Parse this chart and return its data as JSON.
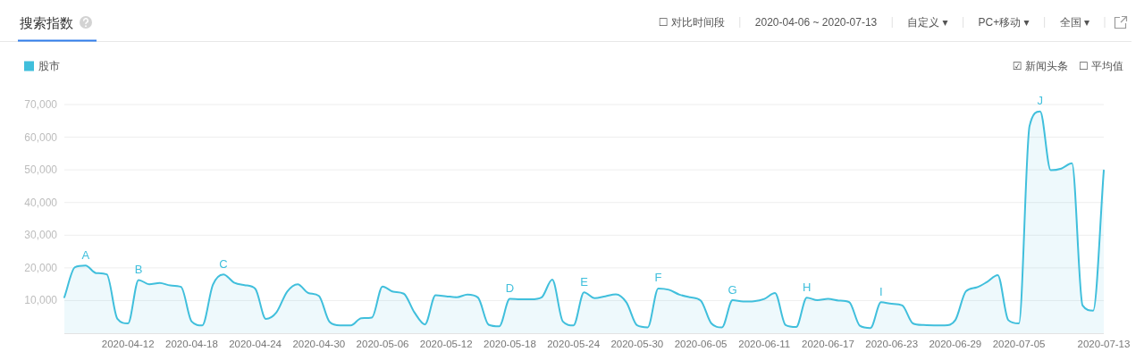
{
  "chart_data": {
    "type": "area",
    "title": "搜索指数",
    "annotations": [
      "☐ 对比时间段",
      "2020-04-06 ~ 2020-07-13",
      "自定义 ▾",
      "PC+移动 ▾",
      "全国 ▾",
      "☑ 新闻头条",
      "☐ 平均值",
      {
        "text": "A",
        "x": "2020-04-08",
        "y": 20700
      },
      {
        "text": "B",
        "x": "2020-04-13",
        "y": 16300
      },
      {
        "text": "C",
        "x": "2020-04-21",
        "y": 18000
      },
      {
        "text": "D",
        "x": "2020-05-18",
        "y": 10500
      },
      {
        "text": "E",
        "x": "2020-05-25",
        "y": 12500
      },
      {
        "text": "F",
        "x": "2020-06-01",
        "y": 13700
      },
      {
        "text": "G",
        "x": "2020-06-08",
        "y": 10100
      },
      {
        "text": "H",
        "x": "2020-06-15",
        "y": 10900
      },
      {
        "text": "I",
        "x": "2020-06-22",
        "y": 9500
      },
      {
        "text": "J",
        "x": "2020-07-07",
        "y": 67900
      }
    ],
    "x": [
      "2020-04-06",
      "2020-04-07",
      "2020-04-08",
      "2020-04-09",
      "2020-04-10",
      "2020-04-11",
      "2020-04-12",
      "2020-04-13",
      "2020-04-14",
      "2020-04-15",
      "2020-04-16",
      "2020-04-17",
      "2020-04-18",
      "2020-04-19",
      "2020-04-20",
      "2020-04-21",
      "2020-04-22",
      "2020-04-23",
      "2020-04-24",
      "2020-04-25",
      "2020-04-26",
      "2020-04-27",
      "2020-04-28",
      "2020-04-29",
      "2020-04-30",
      "2020-05-01",
      "2020-05-02",
      "2020-05-03",
      "2020-05-04",
      "2020-05-05",
      "2020-05-06",
      "2020-05-07",
      "2020-05-08",
      "2020-05-09",
      "2020-05-10",
      "2020-05-11",
      "2020-05-12",
      "2020-05-13",
      "2020-05-14",
      "2020-05-15",
      "2020-05-16",
      "2020-05-17",
      "2020-05-18",
      "2020-05-19",
      "2020-05-20",
      "2020-05-21",
      "2020-05-22",
      "2020-05-23",
      "2020-05-24",
      "2020-05-25",
      "2020-05-26",
      "2020-05-27",
      "2020-05-28",
      "2020-05-29",
      "2020-05-30",
      "2020-05-31",
      "2020-06-01",
      "2020-06-02",
      "2020-06-03",
      "2020-06-04",
      "2020-06-05",
      "2020-06-06",
      "2020-06-07",
      "2020-06-08",
      "2020-06-09",
      "2020-06-10",
      "2020-06-11",
      "2020-06-12",
      "2020-06-13",
      "2020-06-14",
      "2020-06-15",
      "2020-06-16",
      "2020-06-17",
      "2020-06-18",
      "2020-06-19",
      "2020-06-20",
      "2020-06-21",
      "2020-06-22",
      "2020-06-23",
      "2020-06-24",
      "2020-06-25",
      "2020-06-26",
      "2020-06-27",
      "2020-06-28",
      "2020-06-29",
      "2020-06-30",
      "2020-07-01",
      "2020-07-02",
      "2020-07-03",
      "2020-07-04",
      "2020-07-05",
      "2020-07-06",
      "2020-07-07",
      "2020-07-08",
      "2020-07-09",
      "2020-07-10",
      "2020-07-11",
      "2020-07-12",
      "2020-07-13"
    ],
    "series": [
      {
        "name": "股市",
        "color": "#40bfdc",
        "values": [
          11000,
          20200,
          20700,
          18400,
          18000,
          4400,
          3000,
          16300,
          15000,
          15400,
          14600,
          14200,
          3600,
          2400,
          14800,
          18000,
          15500,
          14700,
          13600,
          4400,
          6400,
          12700,
          15000,
          12300,
          11400,
          3500,
          2400,
          2400,
          4600,
          4800,
          14300,
          12700,
          12100,
          6400,
          2700,
          11600,
          11300,
          11000,
          11800,
          10900,
          2600,
          2100,
          10500,
          10400,
          10400,
          11000,
          16400,
          3600,
          2400,
          12500,
          10700,
          11300,
          11900,
          9400,
          2400,
          1800,
          13700,
          13300,
          11800,
          11000,
          10000,
          3000,
          1800,
          10100,
          9700,
          9800,
          10500,
          12300,
          2500,
          1900,
          10900,
          10100,
          10500,
          10000,
          9500,
          2300,
          1600,
          9500,
          9000,
          8500,
          3000,
          2500,
          2400,
          2400,
          4000,
          12800,
          14000,
          15700,
          17800,
          4000,
          3000,
          63400,
          67900,
          49900,
          50400,
          52000,
          8500,
          6900,
          49800
        ]
      }
    ],
    "xlim": [
      "2020-04-06",
      "2020-07-13"
    ],
    "xticks": [
      "2020-04-12",
      "2020-04-18",
      "2020-04-24",
      "2020-04-30",
      "2020-05-06",
      "2020-05-12",
      "2020-05-18",
      "2020-05-24",
      "2020-05-30",
      "2020-06-05",
      "2020-06-11",
      "2020-06-17",
      "2020-06-23",
      "2020-06-29",
      "2020-07-05",
      "2020-07-13"
    ],
    "ylim": [
      0,
      70000
    ],
    "yticks": [
      {
        "value": 10000,
        "label": "10,000"
      },
      {
        "value": 20000,
        "label": "20,000"
      },
      {
        "value": 30000,
        "label": "30,000"
      },
      {
        "value": 40000,
        "label": "40,000"
      },
      {
        "value": 50000,
        "label": "50,000"
      },
      {
        "value": 60000,
        "label": "60,000"
      },
      {
        "value": 70000,
        "label": "70,000"
      }
    ],
    "grid": "y",
    "legend": "top left"
  }
}
